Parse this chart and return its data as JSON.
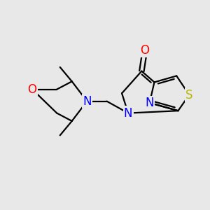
{
  "bg_color": "#e8e8e8",
  "bond_color": "#000000",
  "N_color": "#0000ff",
  "O_color": "#ff0000",
  "S_color": "#b8b800",
  "bond_lw": 1.6,
  "font_size": 12,
  "fig_w": 3.0,
  "fig_h": 3.0,
  "dpi": 100,
  "xlim": [
    -0.3,
    3.2
  ],
  "ylim": [
    0.5,
    3.4
  ]
}
